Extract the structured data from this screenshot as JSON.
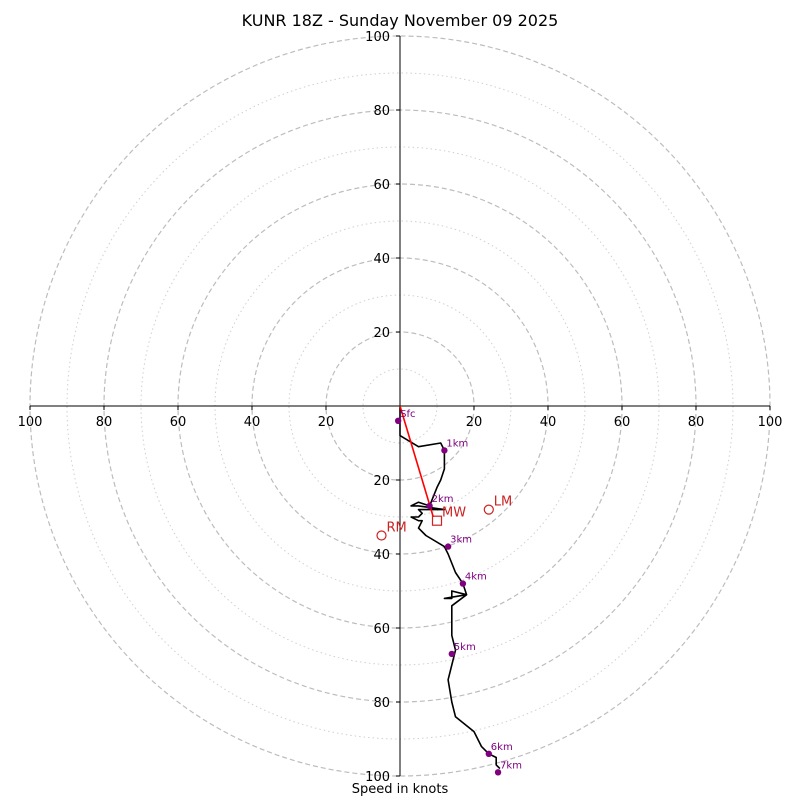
{
  "chart_data": {
    "type": "hodograph",
    "title": "KUNR 18Z - Sunday November 09 2025",
    "xlabel": "Speed in knots",
    "ylabel": "",
    "xlim": [
      -100,
      100
    ],
    "ylim": [
      -100,
      100
    ],
    "ring_major": [
      20,
      40,
      60,
      80,
      100
    ],
    "ring_minor": [
      10,
      30,
      50,
      70,
      90
    ],
    "x_tick_labels": [
      "100",
      "80",
      "60",
      "40",
      "20",
      "20",
      "40",
      "60",
      "80",
      "100"
    ],
    "y_tick_labels": [
      "100",
      "80",
      "60",
      "40",
      "20",
      "20",
      "40",
      "60",
      "80",
      "100"
    ],
    "hodograph_line": [
      [
        0,
        0
      ],
      [
        0,
        -8
      ],
      [
        5,
        -11
      ],
      [
        11,
        -10
      ],
      [
        12,
        -12
      ],
      [
        12,
        -17
      ],
      [
        11,
        -20
      ],
      [
        10,
        -22
      ],
      [
        8,
        -27
      ],
      [
        5,
        -26
      ],
      [
        3,
        -27
      ],
      [
        5,
        -27
      ],
      [
        12,
        -28
      ],
      [
        8,
        -28
      ],
      [
        5,
        -28
      ],
      [
        6,
        -29
      ],
      [
        5,
        -30
      ],
      [
        3,
        -30
      ],
      [
        5,
        -31
      ],
      [
        6,
        -31
      ],
      [
        5,
        -33
      ],
      [
        7,
        -35
      ],
      [
        12,
        -38
      ],
      [
        13,
        -40
      ],
      [
        15,
        -45
      ],
      [
        17,
        -48
      ],
      [
        18,
        -51
      ],
      [
        14,
        -50
      ],
      [
        14,
        -52
      ],
      [
        12,
        -52
      ],
      [
        18,
        -51
      ],
      [
        14,
        -54
      ],
      [
        14,
        -55
      ],
      [
        14,
        -62
      ],
      [
        15,
        -66
      ],
      [
        14,
        -70
      ],
      [
        13,
        -74
      ],
      [
        14,
        -80
      ],
      [
        15,
        -84
      ],
      [
        20,
        -88
      ],
      [
        22,
        -92
      ],
      [
        24,
        -94
      ],
      [
        26,
        -95
      ],
      [
        26,
        -97
      ],
      [
        27,
        -98
      ]
    ],
    "height_markers": [
      {
        "label": "Sfc",
        "u": -0.5,
        "v": -4
      },
      {
        "label": "1km",
        "u": 12,
        "v": -12
      },
      {
        "label": "2km",
        "u": 8,
        "v": -27
      },
      {
        "label": "3km",
        "u": 13,
        "v": -38
      },
      {
        "label": "4km",
        "u": 17,
        "v": -48
      },
      {
        "label": "5km",
        "u": 14,
        "v": -67
      },
      {
        "label": "6km",
        "u": 24,
        "v": -94
      },
      {
        "label": "7km",
        "u": 26.5,
        "v": -99
      }
    ],
    "storm_motion_vector": {
      "from": [
        0,
        0
      ],
      "to": [
        9,
        -30
      ]
    },
    "storm_motions": [
      {
        "label": "LM",
        "u": 24,
        "v": -28,
        "marker": "circle"
      },
      {
        "label": "MW",
        "u": 10,
        "v": -31,
        "marker": "square"
      },
      {
        "label": "RM",
        "u": -5,
        "v": -35,
        "marker": "circle"
      }
    ],
    "colors": {
      "hodograph": "#000000",
      "markers": "#800080",
      "storm": "#cc2222",
      "vector": "#ff0000",
      "grid": "#bdbdbd"
    }
  }
}
